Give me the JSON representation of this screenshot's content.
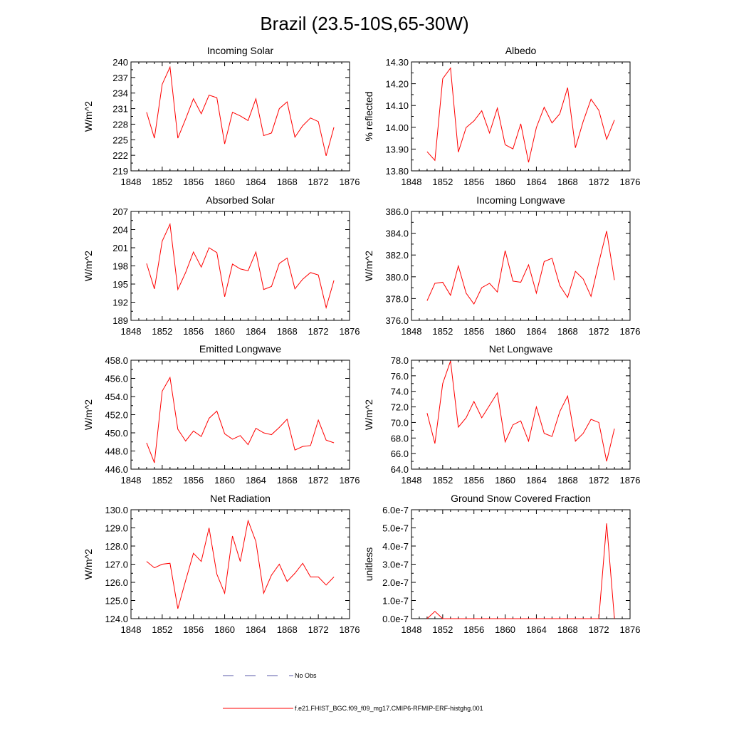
{
  "figure": {
    "title": "Brazil (23.5-10S,65-30W)"
  },
  "legend": {
    "obs_label": "No Obs",
    "obs_color": "#5a5aa8",
    "model_label": "f.e21.FHIST_BGC.f09_f09_mg17.CMIP6-RFMIP-ERF-histghg.001",
    "model_color": "#ff0000"
  },
  "chart_data": [
    {
      "type": "line",
      "title": "Incoming Solar",
      "xlabel": "",
      "ylabel": "W/m^2",
      "xlim": [
        1848,
        1876
      ],
      "ylim": [
        219,
        240
      ],
      "xticks": [
        1848,
        1852,
        1856,
        1860,
        1864,
        1868,
        1872,
        1876
      ],
      "xtick_labels": [
        "1848",
        "1852",
        "1856",
        "1860",
        "1864",
        "1868",
        "1872",
        "1876"
      ],
      "yticks": [
        219,
        222,
        225,
        228,
        231,
        234,
        237,
        240
      ],
      "ytick_labels": [
        "219",
        "222",
        "225",
        "228",
        "231",
        "234",
        "237",
        "240"
      ],
      "series": [
        {
          "name": "f.e21.FHIST_BGC.f09_f09_mg17.CMIP6-RFMIP-ERF-histghg.001",
          "x": [
            1850,
            1851,
            1852,
            1853,
            1854,
            1855,
            1856,
            1857,
            1858,
            1859,
            1860,
            1861,
            1862,
            1863,
            1864,
            1865,
            1866,
            1867,
            1868,
            1869,
            1870,
            1871,
            1872,
            1873,
            1874
          ],
          "y": [
            230.3,
            225.3,
            235.7,
            239.0,
            225.3,
            229.0,
            232.9,
            230.0,
            233.6,
            233.1,
            224.2,
            230.3,
            229.6,
            228.7,
            232.9,
            225.8,
            226.3,
            231.0,
            232.3,
            225.5,
            227.7,
            229.2,
            228.5,
            221.9,
            227.4
          ]
        }
      ]
    },
    {
      "type": "line",
      "title": "Albedo",
      "xlabel": "",
      "ylabel": "% reflected",
      "xlim": [
        1848,
        1876
      ],
      "ylim": [
        13.8,
        14.3
      ],
      "xticks": [
        1848,
        1852,
        1856,
        1860,
        1864,
        1868,
        1872,
        1876
      ],
      "xtick_labels": [
        "1848",
        "1852",
        "1856",
        "1860",
        "1864",
        "1868",
        "1872",
        "1876"
      ],
      "yticks": [
        13.8,
        13.9,
        14.0,
        14.1,
        14.2,
        14.3
      ],
      "ytick_labels": [
        "13.80",
        "13.90",
        "14.00",
        "14.10",
        "14.20",
        "14.30"
      ],
      "series": [
        {
          "name": "f.e21.FHIST_BGC.f09_f09_mg17.CMIP6-RFMIP-ERF-histghg.001",
          "x": [
            1850,
            1851,
            1852,
            1853,
            1854,
            1855,
            1856,
            1857,
            1858,
            1859,
            1860,
            1861,
            1862,
            1863,
            1864,
            1865,
            1866,
            1867,
            1868,
            1869,
            1870,
            1871,
            1872,
            1873,
            1874
          ],
          "y": [
            13.888,
            13.848,
            14.223,
            14.272,
            13.886,
            13.999,
            14.029,
            14.076,
            13.974,
            14.088,
            13.92,
            13.901,
            14.016,
            13.839,
            13.999,
            14.092,
            14.02,
            14.062,
            14.182,
            13.906,
            14.027,
            14.129,
            14.078,
            13.945,
            14.033
          ]
        }
      ]
    },
    {
      "type": "line",
      "title": "Absorbed Solar",
      "xlabel": "",
      "ylabel": "W/m^2",
      "xlim": [
        1848,
        1876
      ],
      "ylim": [
        189,
        207
      ],
      "xticks": [
        1848,
        1852,
        1856,
        1860,
        1864,
        1868,
        1872,
        1876
      ],
      "xtick_labels": [
        "1848",
        "1852",
        "1856",
        "1860",
        "1864",
        "1868",
        "1872",
        "1876"
      ],
      "yticks": [
        189,
        192,
        195,
        198,
        201,
        204,
        207
      ],
      "ytick_labels": [
        "189",
        "192",
        "195",
        "198",
        "201",
        "204",
        "207"
      ],
      "series": [
        {
          "name": "f.e21.FHIST_BGC.f09_f09_mg17.CMIP6-RFMIP-ERF-histghg.001",
          "x": [
            1850,
            1851,
            1852,
            1853,
            1854,
            1855,
            1856,
            1857,
            1858,
            1859,
            1860,
            1861,
            1862,
            1863,
            1864,
            1865,
            1866,
            1867,
            1868,
            1869,
            1870,
            1871,
            1872,
            1873,
            1874
          ],
          "y": [
            198.4,
            194.2,
            202.1,
            204.9,
            194.1,
            196.9,
            200.3,
            197.8,
            201.0,
            200.2,
            192.9,
            198.3,
            197.5,
            197.2,
            200.3,
            194.1,
            194.6,
            198.4,
            199.3,
            194.2,
            195.8,
            196.9,
            196.5,
            191.1,
            195.6
          ]
        }
      ]
    },
    {
      "type": "line",
      "title": "Incoming Longwave",
      "xlabel": "",
      "ylabel": "W/m^2",
      "xlim": [
        1848,
        1876
      ],
      "ylim": [
        376,
        386
      ],
      "xticks": [
        1848,
        1852,
        1856,
        1860,
        1864,
        1868,
        1872,
        1876
      ],
      "xtick_labels": [
        "1848",
        "1852",
        "1856",
        "1860",
        "1864",
        "1868",
        "1872",
        "1876"
      ],
      "yticks": [
        376,
        378,
        380,
        382,
        384,
        386
      ],
      "ytick_labels": [
        "376.0",
        "378.0",
        "380.0",
        "382.0",
        "384.0",
        "386.0"
      ],
      "series": [
        {
          "name": "f.e21.FHIST_BGC.f09_f09_mg17.CMIP6-RFMIP-ERF-histghg.001",
          "x": [
            1850,
            1851,
            1852,
            1853,
            1854,
            1855,
            1856,
            1857,
            1858,
            1859,
            1860,
            1861,
            1862,
            1863,
            1864,
            1865,
            1866,
            1867,
            1868,
            1869,
            1870,
            1871,
            1872,
            1873,
            1874
          ],
          "y": [
            377.8,
            379.4,
            379.5,
            378.3,
            381.0,
            378.5,
            377.5,
            379.0,
            379.4,
            378.6,
            382.4,
            379.6,
            379.5,
            381.1,
            378.5,
            381.4,
            381.7,
            379.2,
            378.1,
            380.5,
            379.8,
            378.2,
            381.3,
            384.2,
            379.7
          ]
        }
      ]
    },
    {
      "type": "line",
      "title": "Emitted Longwave",
      "xlabel": "",
      "ylabel": "W/m^2",
      "xlim": [
        1848,
        1876
      ],
      "ylim": [
        446,
        458
      ],
      "xticks": [
        1848,
        1852,
        1856,
        1860,
        1864,
        1868,
        1872,
        1876
      ],
      "xtick_labels": [
        "1848",
        "1852",
        "1856",
        "1860",
        "1864",
        "1868",
        "1872",
        "1876"
      ],
      "yticks": [
        446,
        448,
        450,
        452,
        454,
        456,
        458
      ],
      "ytick_labels": [
        "446.0",
        "448.0",
        "450.0",
        "452.0",
        "454.0",
        "456.0",
        "458.0"
      ],
      "series": [
        {
          "name": "f.e21.FHIST_BGC.f09_f09_mg17.CMIP6-RFMIP-ERF-histghg.001",
          "x": [
            1850,
            1851,
            1852,
            1853,
            1854,
            1855,
            1856,
            1857,
            1858,
            1859,
            1860,
            1861,
            1862,
            1863,
            1864,
            1865,
            1866,
            1867,
            1868,
            1869,
            1870,
            1871,
            1872,
            1873,
            1874
          ],
          "y": [
            448.9,
            446.7,
            454.6,
            456.1,
            450.4,
            449.1,
            450.2,
            449.6,
            451.6,
            452.4,
            449.9,
            449.3,
            449.7,
            448.7,
            450.5,
            450.0,
            449.8,
            450.6,
            451.5,
            448.1,
            448.5,
            448.6,
            451.4,
            449.2,
            448.9
          ]
        }
      ]
    },
    {
      "type": "line",
      "title": "Net Longwave",
      "xlabel": "",
      "ylabel": "W/m^2",
      "xlim": [
        1848,
        1876
      ],
      "ylim": [
        64,
        78
      ],
      "xticks": [
        1848,
        1852,
        1856,
        1860,
        1864,
        1868,
        1872,
        1876
      ],
      "xtick_labels": [
        "1848",
        "1852",
        "1856",
        "1860",
        "1864",
        "1868",
        "1872",
        "1876"
      ],
      "yticks": [
        64,
        66,
        68,
        70,
        72,
        74,
        76,
        78
      ],
      "ytick_labels": [
        "64.0",
        "66.0",
        "68.0",
        "70.0",
        "72.0",
        "74.0",
        "76.0",
        "78.0"
      ],
      "series": [
        {
          "name": "f.e21.FHIST_BGC.f09_f09_mg17.CMIP6-RFMIP-ERF-histghg.001",
          "x": [
            1850,
            1851,
            1852,
            1853,
            1854,
            1855,
            1856,
            1857,
            1858,
            1859,
            1860,
            1861,
            1862,
            1863,
            1864,
            1865,
            1866,
            1867,
            1868,
            1869,
            1870,
            1871,
            1872,
            1873,
            1874
          ],
          "y": [
            71.2,
            67.3,
            75.0,
            77.9,
            69.4,
            70.6,
            72.7,
            70.6,
            72.2,
            73.8,
            67.5,
            69.7,
            70.2,
            67.6,
            72.0,
            68.6,
            68.2,
            71.4,
            73.4,
            67.6,
            68.6,
            70.4,
            70.0,
            65.0,
            69.2
          ]
        }
      ]
    },
    {
      "type": "line",
      "title": "Net Radiation",
      "xlabel": "",
      "ylabel": "W/m^2",
      "xlim": [
        1848,
        1876
      ],
      "ylim": [
        124,
        130
      ],
      "xticks": [
        1848,
        1852,
        1856,
        1860,
        1864,
        1868,
        1872,
        1876
      ],
      "xtick_labels": [
        "1848",
        "1852",
        "1856",
        "1860",
        "1864",
        "1868",
        "1872",
        "1876"
      ],
      "yticks": [
        124,
        125,
        126,
        127,
        128,
        129,
        130
      ],
      "ytick_labels": [
        "124.0",
        "125.0",
        "126.0",
        "127.0",
        "128.0",
        "129.0",
        "130.0"
      ],
      "series": [
        {
          "name": "f.e21.FHIST_BGC.f09_f09_mg17.CMIP6-RFMIP-ERF-histghg.001",
          "x": [
            1850,
            1851,
            1852,
            1853,
            1854,
            1855,
            1856,
            1857,
            1858,
            1859,
            1860,
            1861,
            1862,
            1863,
            1864,
            1865,
            1866,
            1867,
            1868,
            1869,
            1870,
            1871,
            1872,
            1873,
            1874
          ],
          "y": [
            127.15,
            126.8,
            127.0,
            127.05,
            124.55,
            126.1,
            127.6,
            127.15,
            129.0,
            126.45,
            125.4,
            128.55,
            127.15,
            129.4,
            128.25,
            125.4,
            126.4,
            127.0,
            126.05,
            126.5,
            127.05,
            126.3,
            126.3,
            125.85,
            126.3
          ]
        }
      ]
    },
    {
      "type": "line",
      "title": "Ground Snow Covered Fraction",
      "xlabel": "",
      "ylabel": "unitless",
      "xlim": [
        1848,
        1876
      ],
      "ylim": [
        0,
        6e-07
      ],
      "xticks": [
        1848,
        1852,
        1856,
        1860,
        1864,
        1868,
        1872,
        1876
      ],
      "xtick_labels": [
        "1848",
        "1852",
        "1856",
        "1860",
        "1864",
        "1868",
        "1872",
        "1876"
      ],
      "yticks": [
        0,
        1e-07,
        2e-07,
        3e-07,
        4e-07,
        5e-07,
        6e-07
      ],
      "ytick_labels": [
        "0.0e-7",
        "1.0e-7",
        "2.0e-7",
        "3.0e-7",
        "4.0e-7",
        "5.0e-7",
        "6.0e-7"
      ],
      "series": [
        {
          "name": "f.e21.FHIST_BGC.f09_f09_mg17.CMIP6-RFMIP-ERF-histghg.001",
          "x": [
            1850,
            1851,
            1852,
            1853,
            1854,
            1855,
            1856,
            1857,
            1858,
            1859,
            1860,
            1861,
            1862,
            1863,
            1864,
            1865,
            1866,
            1867,
            1868,
            1869,
            1870,
            1871,
            1872,
            1873,
            1874
          ],
          "y": [
            0,
            4e-08,
            0,
            0,
            0,
            0,
            0,
            0,
            0,
            0,
            0,
            0,
            0,
            0,
            0,
            0,
            0,
            0,
            0,
            0,
            0,
            0,
            0,
            5.25e-07,
            0
          ]
        }
      ]
    }
  ]
}
